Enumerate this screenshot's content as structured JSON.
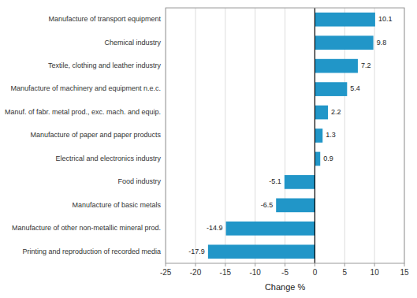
{
  "chart_data": {
    "type": "bar",
    "orientation": "horizontal",
    "categories": [
      "Printing and reproduction of recorded media",
      "Manufacture of other non-metallic mineral prod.",
      "Manufacture of basic metals",
      "Food industry",
      "Electrical and electronics industry",
      "Manufacture of paper and paper products",
      "Manuf. of fabr. metal prod., exc. mach. and equip.",
      "Manufacture of machinery and equipment n.e.c.",
      "Textile, clothing and leather industry",
      "Chemical industry",
      "Manufacture of transport equipment"
    ],
    "values": [
      -17.9,
      -14.9,
      -6.5,
      -5.1,
      0.9,
      1.3,
      2.2,
      5.4,
      7.2,
      9.8,
      10.1
    ],
    "color": "#2196c8",
    "xlabel": "Change %",
    "xlim": [
      -25,
      15
    ],
    "xticks": [
      -25,
      -20,
      -15,
      -10,
      -5,
      0,
      5,
      10,
      15
    ],
    "grid": true,
    "data_labels": true
  }
}
